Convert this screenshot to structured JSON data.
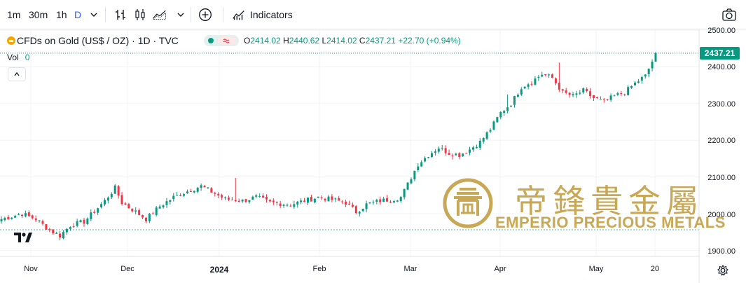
{
  "toolbar": {
    "intervals": [
      "1m",
      "30m",
      "1h",
      "D"
    ],
    "active_interval": "D",
    "indicators_label": "Indicators"
  },
  "legend": {
    "symbol": "CFDs on Gold (US$ / OZ) · 1D · TVC",
    "open_key": "O",
    "open": "2414.02",
    "high_key": "H",
    "high": "2440.62",
    "low_key": "L",
    "low": "2414.02",
    "close_key": "C",
    "close": "2437.21",
    "change": "+22.70 (+0.94%)"
  },
  "volume": {
    "label": "Vol",
    "value": "0"
  },
  "price_axis": {
    "ticks": [
      "2500.00",
      "2400.00",
      "2300.00",
      "2200.00",
      "2100.00",
      "2000.00",
      "1900.00"
    ],
    "last_price": "2437.21"
  },
  "time_axis": {
    "labels": [
      "Nov",
      "Dec",
      "2024",
      "Feb",
      "Mar",
      "Apr",
      "May",
      "20"
    ]
  },
  "watermark": {
    "chinese": "帝鋒貴金屬",
    "english": "EMPERIO PRECIOUS METALS"
  },
  "colors": {
    "up": "#089981",
    "down": "#f23645",
    "accent": "#2962ff",
    "gold": "#c9a855"
  },
  "chart_data": {
    "type": "candlestick",
    "title": "CFDs on Gold (US$ / OZ) · 1D · TVC",
    "x_range": [
      "2023-10-26",
      "2024-05-20"
    ],
    "ylim": [
      1880,
      2520
    ],
    "grid": true,
    "reference_line": 1956,
    "series": [
      {
        "name": "",
        "anchors_close": [
          [
            0,
            1985
          ],
          [
            6,
            2000
          ],
          [
            10,
            1985
          ],
          [
            14,
            1955
          ],
          [
            17,
            1940
          ],
          [
            20,
            1968
          ],
          [
            24,
            1978
          ],
          [
            30,
            2035
          ],
          [
            33,
            2070
          ],
          [
            35,
            2030
          ],
          [
            39,
            2005
          ],
          [
            42,
            1985
          ],
          [
            46,
            2020
          ],
          [
            50,
            2045
          ],
          [
            55,
            2065
          ],
          [
            58,
            2075
          ],
          [
            62,
            2055
          ],
          [
            65,
            2040
          ],
          [
            70,
            2035
          ],
          [
            74,
            2045
          ],
          [
            78,
            2030
          ],
          [
            84,
            2025
          ],
          [
            88,
            2035
          ],
          [
            92,
            2045
          ],
          [
            96,
            2038
          ],
          [
            100,
            2030
          ],
          [
            103,
            2005
          ],
          [
            106,
            2025
          ],
          [
            110,
            2035
          ],
          [
            114,
            2040
          ],
          [
            116,
            2045
          ],
          [
            118,
            2080
          ],
          [
            121,
            2135
          ],
          [
            124,
            2160
          ],
          [
            127,
            2180
          ],
          [
            130,
            2165
          ],
          [
            133,
            2160
          ],
          [
            136,
            2175
          ],
          [
            139,
            2195
          ],
          [
            142,
            2230
          ],
          [
            145,
            2275
          ],
          [
            148,
            2300
          ],
          [
            151,
            2345
          ],
          [
            154,
            2360
          ],
          [
            157,
            2380
          ],
          [
            160,
            2370
          ],
          [
            163,
            2330
          ],
          [
            166,
            2320
          ],
          [
            169,
            2335
          ],
          [
            172,
            2315
          ],
          [
            175,
            2305
          ],
          [
            178,
            2320
          ],
          [
            181,
            2330
          ],
          [
            184,
            2355
          ],
          [
            187,
            2375
          ],
          [
            189,
            2415
          ],
          [
            190,
            2437.21
          ]
        ]
      }
    ]
  }
}
